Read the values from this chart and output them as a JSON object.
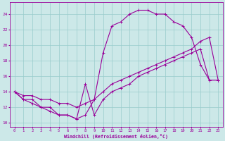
{
  "xlabel": "Windchill (Refroidissement éolien,°C)",
  "xlim": [
    -0.5,
    23.5
  ],
  "ylim": [
    9.5,
    25.5
  ],
  "xticks": [
    0,
    1,
    2,
    3,
    4,
    5,
    6,
    7,
    8,
    9,
    10,
    11,
    12,
    13,
    14,
    15,
    16,
    17,
    18,
    19,
    20,
    21,
    22,
    23
  ],
  "yticks": [
    10,
    12,
    14,
    16,
    18,
    20,
    22,
    24
  ],
  "bg_color": "#cce8e8",
  "line_color": "#990099",
  "grid_color": "#99cccc",
  "series": [
    {
      "x": [
        0,
        1,
        2,
        3,
        4,
        5,
        6,
        7,
        8,
        9,
        10,
        11,
        12,
        13,
        14,
        15,
        16,
        17,
        18,
        19,
        20,
        21,
        22,
        23
      ],
      "y": [
        14,
        13,
        13,
        12,
        12,
        11,
        11,
        10.5,
        11,
        13,
        19,
        22.5,
        23,
        24,
        24.5,
        24.5,
        24,
        24,
        23,
        22.5,
        21,
        17.5,
        15.5,
        15.5
      ]
    },
    {
      "x": [
        0,
        1,
        2,
        3,
        4,
        5,
        6,
        7,
        8,
        9,
        10,
        11,
        12,
        13,
        14,
        15,
        16,
        17,
        18,
        19,
        20,
        21,
        22,
        23
      ],
      "y": [
        14,
        13.5,
        13.5,
        13,
        13,
        12.5,
        12.5,
        12,
        12.5,
        13,
        14,
        15,
        15.5,
        16,
        16.5,
        17,
        17.5,
        18,
        18.5,
        19,
        19.5,
        20.5,
        21,
        15.5
      ]
    },
    {
      "x": [
        0,
        1,
        2,
        3,
        4,
        5,
        6,
        7,
        8,
        9,
        10,
        11,
        12,
        13,
        14,
        15,
        16,
        17,
        18,
        19,
        20,
        21,
        22,
        23
      ],
      "y": [
        14,
        13,
        12.5,
        12,
        11.5,
        11,
        11,
        10.5,
        15,
        11,
        13,
        14,
        14.5,
        15,
        16,
        16.5,
        17,
        17.5,
        18,
        18.5,
        19,
        19.5,
        15.5,
        15.5
      ]
    }
  ]
}
